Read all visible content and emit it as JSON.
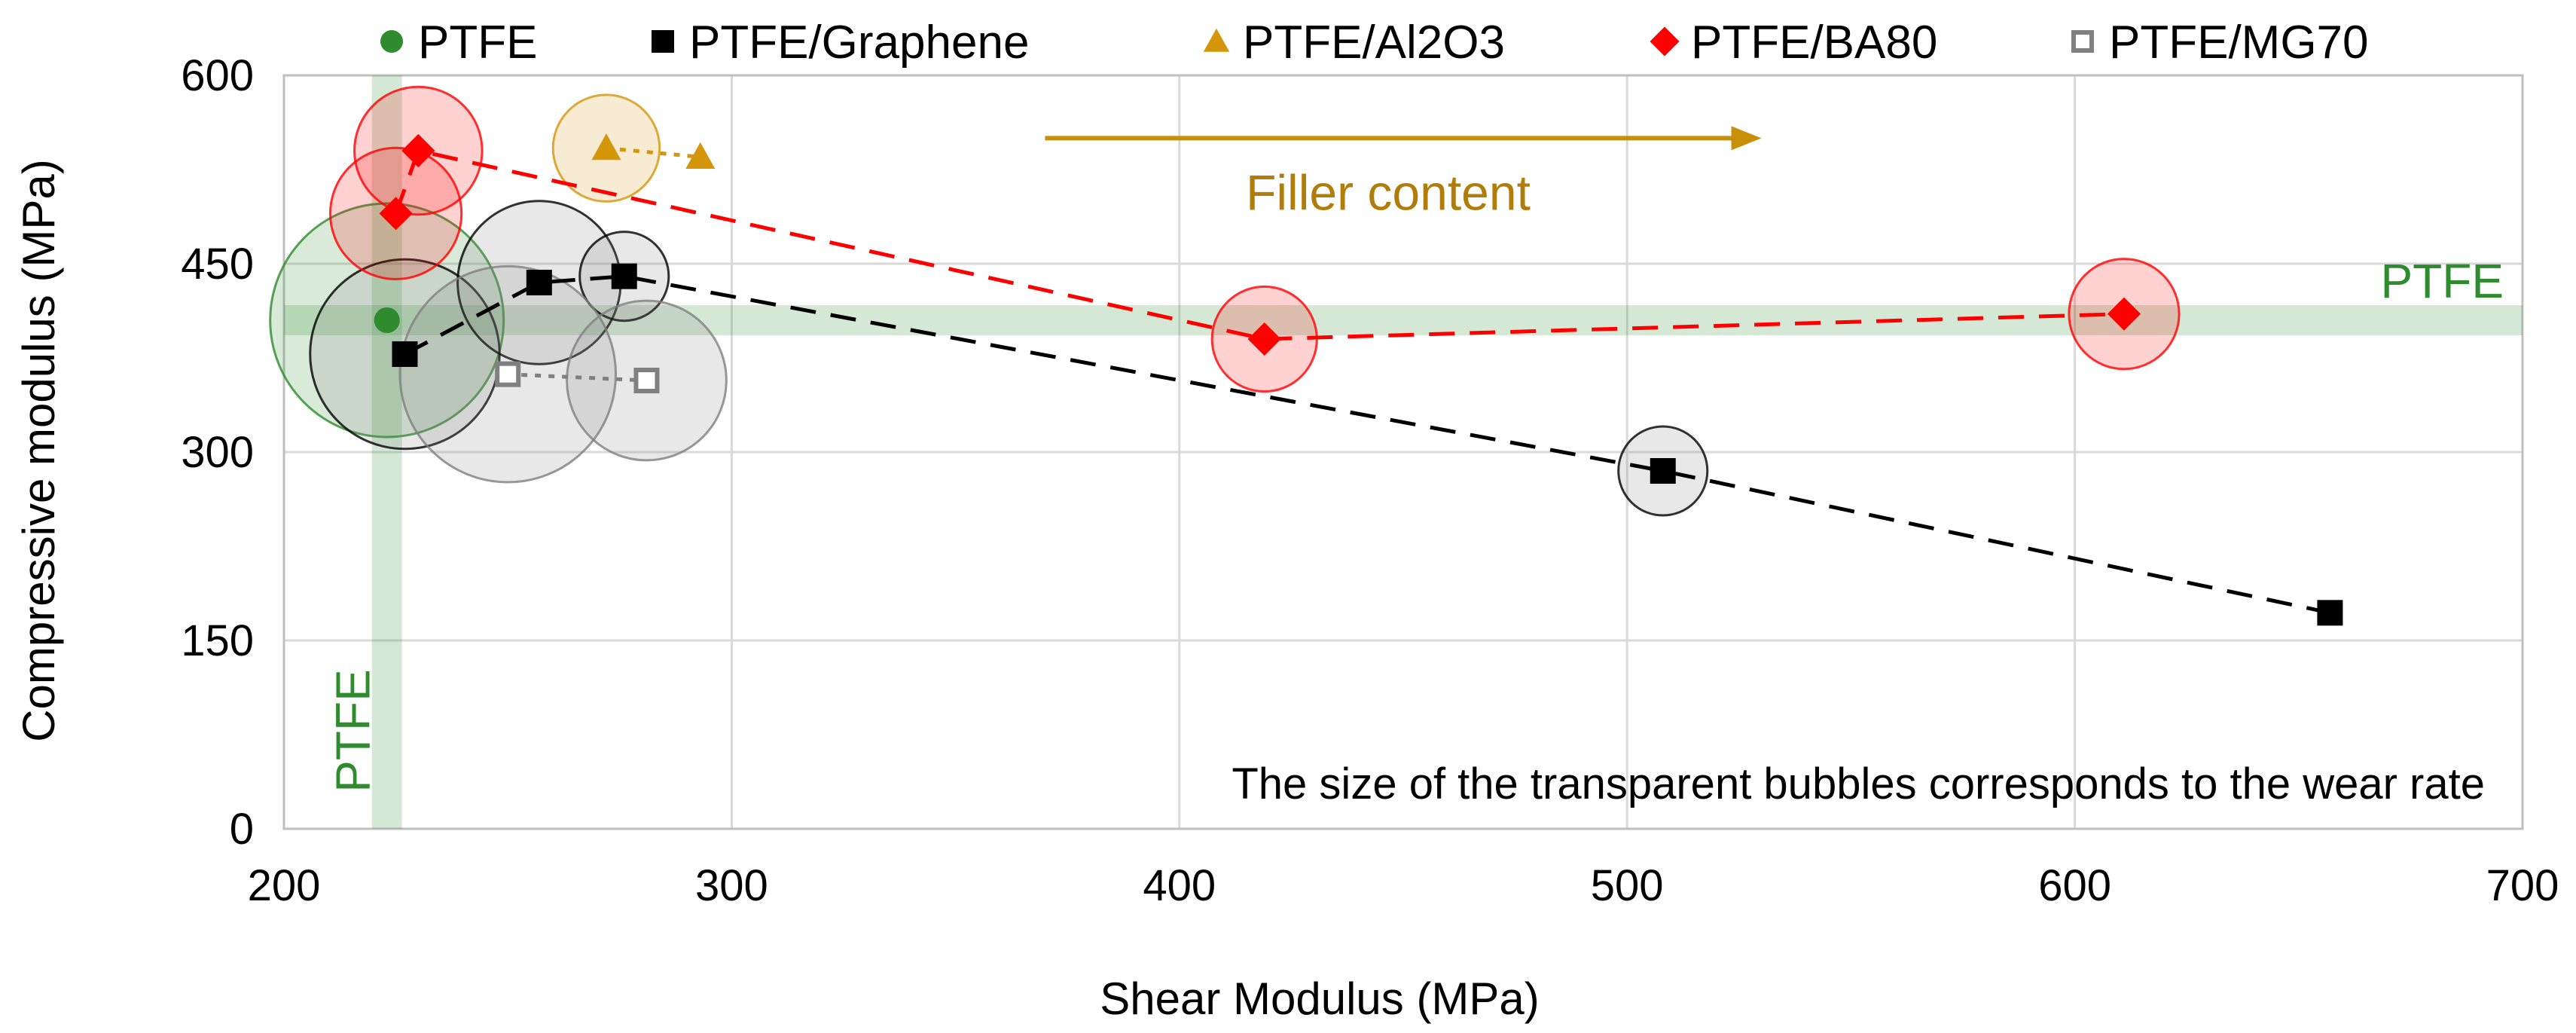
{
  "chart_data": {
    "type": "scatter",
    "xlabel": "Shear Modulus (MPa)",
    "ylabel": "Compressive modulus (MPa)",
    "xlim": [
      200,
      700
    ],
    "ylim": [
      0,
      600
    ],
    "x_ticks": [
      200,
      300,
      400,
      500,
      600,
      700
    ],
    "y_ticks": [
      0,
      150,
      300,
      450,
      600
    ],
    "grid": true,
    "legend_position": "top",
    "series": [
      {
        "name": "PTFE",
        "marker": "circle",
        "color": "#2e8b2e",
        "line": "none",
        "points": [
          {
            "x": 223,
            "y": 405,
            "wear": 1.0
          }
        ]
      },
      {
        "name": "PTFE/Graphene",
        "marker": "square",
        "color": "#000000",
        "line": "dashed",
        "points": [
          {
            "x": 227,
            "y": 378,
            "wear": 0.75
          },
          {
            "x": 257,
            "y": 435,
            "wear": 0.6
          },
          {
            "x": 276,
            "y": 440,
            "wear": 0.18
          },
          {
            "x": 508,
            "y": 285,
            "wear": 0.18
          },
          {
            "x": 657,
            "y": 172,
            "wear": 0.0
          }
        ]
      },
      {
        "name": "PTFE/Al2O3",
        "marker": "triangle",
        "color": "#d4960a",
        "line": "dotted",
        "points": [
          {
            "x": 272,
            "y": 542,
            "wear": 0.28
          },
          {
            "x": 293,
            "y": 535,
            "wear": 0.0
          }
        ]
      },
      {
        "name": "PTFE/BA80",
        "marker": "diamond",
        "color": "#ff0000",
        "line": "dashed",
        "points": [
          {
            "x": 225,
            "y": 490,
            "wear": 0.42
          },
          {
            "x": 230,
            "y": 540,
            "wear": 0.4
          },
          {
            "x": 419,
            "y": 390,
            "wear": 0.27
          },
          {
            "x": 611,
            "y": 410,
            "wear": 0.3
          }
        ]
      },
      {
        "name": "PTFE/MG70",
        "marker": "open-square",
        "color": "#808080",
        "line": "dotted",
        "points": [
          {
            "x": 250,
            "y": 362,
            "wear": 0.9
          },
          {
            "x": 281,
            "y": 357,
            "wear": 0.58
          }
        ]
      }
    ],
    "reference_lines": [
      {
        "axis": "y",
        "value": 405,
        "label": "PTFE",
        "color": "#2e8b2e"
      },
      {
        "axis": "x",
        "value": 223,
        "label": "PTFE",
        "color": "#2e8b2e"
      }
    ],
    "annotations": {
      "arrow_label": "Filler content",
      "arrow_color": "#c8900a",
      "arrow_from_x": 370,
      "arrow_to_x": 530,
      "arrow_y": 550,
      "bubble_note": "The size of the transparent bubbles corresponds to the wear rate"
    }
  }
}
